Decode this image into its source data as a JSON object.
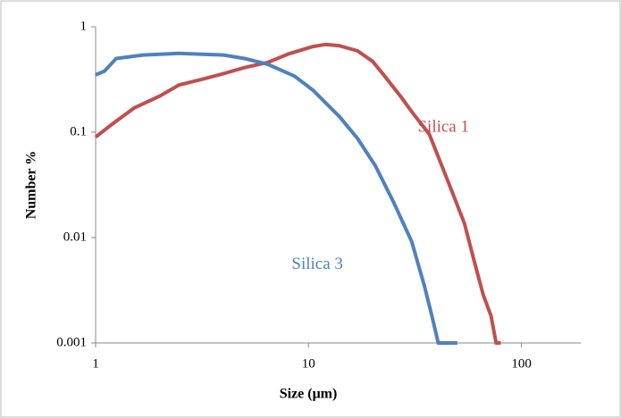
{
  "chart_data": {
    "type": "line",
    "x_label": "Size (μm)",
    "y_label": "Number %",
    "xscale": "log",
    "yscale": "log",
    "xlim": [
      1,
      190
    ],
    "ylim": [
      0.001,
      1
    ],
    "xticks": [
      1,
      10,
      100
    ],
    "yticks": [
      0.001,
      0.01,
      0.1,
      1
    ],
    "grid": false,
    "annotations": [
      {
        "text": "Silica 1",
        "x": 43,
        "y": 0.11,
        "color": "#c0504d"
      },
      {
        "text": "Silica 3",
        "x": 11,
        "y": 0.0055,
        "color": "#4f81bd"
      }
    ],
    "series": [
      {
        "name": "Silica 1",
        "color": "#c0504d",
        "x": [
          1,
          1.2,
          1.52,
          2,
          2.46,
          3.2,
          3.99,
          5,
          6.45,
          8,
          10.5,
          12,
          14,
          17,
          20,
          22.8,
          27,
          31,
          36.9,
          45,
          54,
          60,
          66,
          72,
          76,
          80
        ],
        "y": [
          0.09,
          0.12,
          0.17,
          0.22,
          0.28,
          0.32,
          0.36,
          0.41,
          0.46,
          0.55,
          0.65,
          0.68,
          0.66,
          0.59,
          0.47,
          0.34,
          0.22,
          0.15,
          0.096,
          0.035,
          0.0136,
          0.006,
          0.0029,
          0.0018,
          0.001,
          0.001
        ]
      },
      {
        "name": "Silica 3",
        "color": "#4f81bd",
        "x": [
          1,
          1.1,
          1.25,
          1.67,
          2.46,
          3.99,
          5,
          6.45,
          8.6,
          10.5,
          14,
          17,
          20.6,
          25,
          30.5,
          35,
          38,
          40.7,
          44,
          50
        ],
        "y": [
          0.35,
          0.38,
          0.5,
          0.54,
          0.56,
          0.54,
          0.5,
          0.44,
          0.34,
          0.25,
          0.14,
          0.087,
          0.048,
          0.022,
          0.0092,
          0.0035,
          0.0018,
          0.001,
          0.001,
          0.001
        ]
      }
    ]
  }
}
